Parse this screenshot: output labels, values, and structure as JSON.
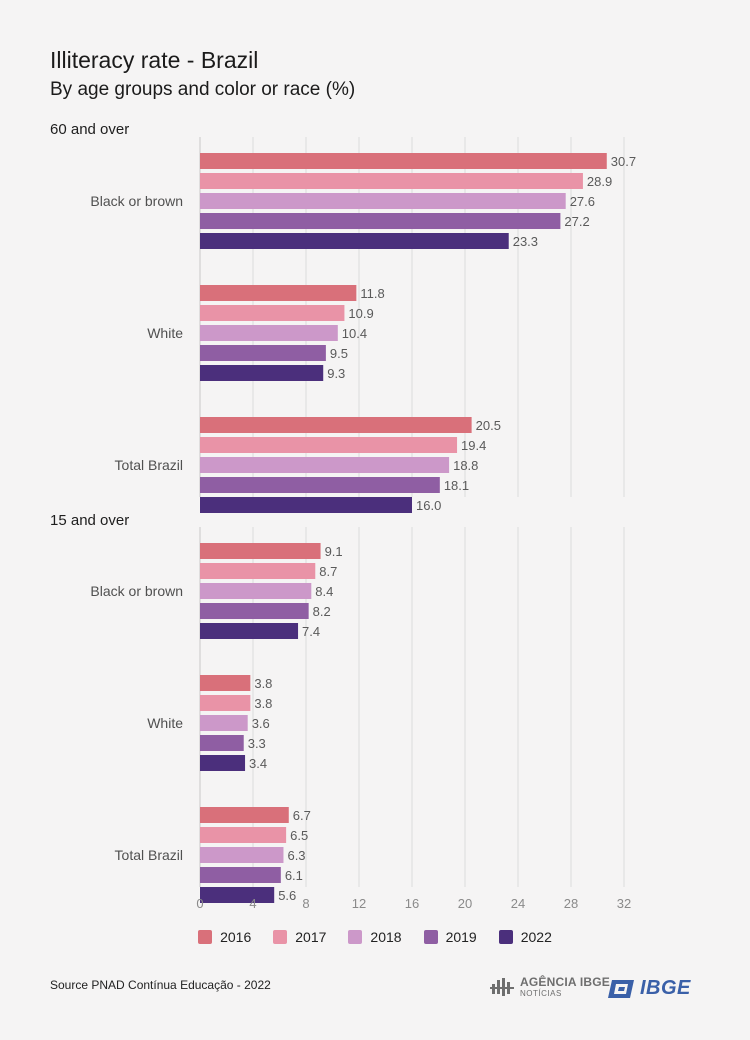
{
  "title": "Illiteracy rate - Brazil",
  "subtitle": "By age groups and color or race (%)",
  "source": "Source PNAD Contínua Educação - 2022",
  "logos": {
    "agencia_main": "AGÊNCIA IBGE",
    "agencia_sub": "NOTÍCIAS",
    "ibge": "IBGE"
  },
  "colors": {
    "2016": "#d9707a",
    "2017": "#e993a7",
    "2018": "#cc98c9",
    "2019": "#8f5ea3",
    "2022": "#4b2f7c"
  },
  "chart_data": {
    "type": "bar",
    "orientation": "horizontal",
    "legend": [
      "2016",
      "2017",
      "2018",
      "2019",
      "2022"
    ],
    "legend_position": "bottom",
    "xlim": [
      0,
      32
    ],
    "xticks": [
      0,
      4,
      8,
      12,
      16,
      20,
      24,
      28,
      32
    ],
    "grid": true,
    "panels": [
      {
        "title": "60 and over",
        "categories": [
          "Black or brown",
          "White",
          "Total Brazil"
        ],
        "series": [
          {
            "name": "2016",
            "values": [
              30.7,
              11.8,
              20.5
            ]
          },
          {
            "name": "2017",
            "values": [
              28.9,
              10.9,
              19.4
            ]
          },
          {
            "name": "2018",
            "values": [
              27.6,
              10.4,
              18.8
            ]
          },
          {
            "name": "2019",
            "values": [
              27.2,
              9.5,
              18.1
            ]
          },
          {
            "name": "2022",
            "values": [
              23.3,
              9.3,
              16.0
            ]
          }
        ]
      },
      {
        "title": "15 and over",
        "categories": [
          "Black or brown",
          "White",
          "Total Brazil"
        ],
        "series": [
          {
            "name": "2016",
            "values": [
              9.1,
              3.8,
              6.7
            ]
          },
          {
            "name": "2017",
            "values": [
              8.7,
              3.8,
              6.5
            ]
          },
          {
            "name": "2018",
            "values": [
              8.4,
              3.6,
              6.3
            ]
          },
          {
            "name": "2019",
            "values": [
              8.2,
              3.3,
              6.1
            ]
          },
          {
            "name": "2022",
            "values": [
              7.4,
              3.4,
              5.6
            ]
          }
        ]
      }
    ]
  }
}
